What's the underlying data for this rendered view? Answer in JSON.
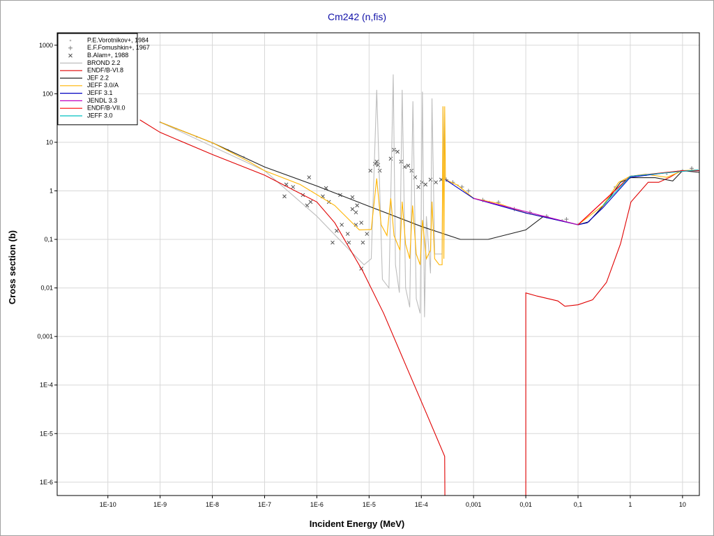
{
  "chart_data": {
    "type": "line",
    "title": "Cm242 (n,fis)",
    "x_label": "Incident Energy (MeV)",
    "y_label": "Cross section (b)",
    "log_x": true,
    "log_y": true,
    "grid": true,
    "legend": "upper left",
    "xlim": [
      1.07e-11,
      21
    ],
    "ylim": [
      5.3e-07,
      1800
    ],
    "xticks": [
      {
        "value": 1e-10,
        "label": "1E-10"
      },
      {
        "value": 1e-09,
        "label": "1E-9"
      },
      {
        "value": 1e-08,
        "label": "1E-8"
      },
      {
        "value": 1e-07,
        "label": "1E-7"
      },
      {
        "value": 1e-06,
        "label": "1E-6"
      },
      {
        "value": 1e-05,
        "label": "1E-5"
      },
      {
        "value": 0.0001,
        "label": "1E-4"
      },
      {
        "value": 0.001,
        "label": "0,001"
      },
      {
        "value": 0.01,
        "label": "0,01"
      },
      {
        "value": 0.1,
        "label": "0,1"
      },
      1,
      10
    ],
    "yticks": [
      1000,
      100,
      10,
      1,
      {
        "value": 0.1,
        "label": "0,1"
      },
      {
        "value": 0.01,
        "label": "0,01"
      },
      {
        "value": 0.001,
        "label": "0,001"
      },
      {
        "value": 0.0001,
        "label": "1E-4"
      },
      {
        "value": 1e-05,
        "label": "1E-5"
      },
      {
        "value": 1e-06,
        "label": "1E-6"
      }
    ],
    "series": [
      {
        "name": "P.E.Vorotnikov+, 1984",
        "kind": "scatter",
        "marker": "dot",
        "color": "#b8b8b8",
        "x": [
          1e-09,
          2e-09,
          5e-09,
          1e-08,
          2e-08,
          4e-08,
          0.0003,
          0.0005,
          0.001,
          0.002,
          0.005,
          0.01,
          0.02,
          0.05,
          0.1,
          0.5,
          1,
          2,
          5,
          10,
          15
        ],
        "values": [
          26,
          19,
          13,
          9.5,
          7,
          5,
          1.6,
          1.3,
          0.7,
          0.6,
          0.45,
          0.35,
          0.3,
          0.25,
          0.21,
          1.2,
          1.9,
          2.1,
          2.2,
          2.7,
          2.9
        ]
      },
      {
        "name": "E.F.Fomushkin+, 1967",
        "kind": "scatter",
        "marker": "plus",
        "color": "#808080",
        "x": [
          0.0003,
          0.0004,
          0.0006,
          0.0008,
          0.0015,
          0.003,
          0.006,
          0.012,
          0.025,
          0.06,
          15
        ],
        "values": [
          1.7,
          1.5,
          1.2,
          1.0,
          0.65,
          0.58,
          0.42,
          0.36,
          0.3,
          0.26,
          2.9
        ]
      },
      {
        "name": "B.Alam+, 1988",
        "kind": "scatter",
        "marker": "x",
        "color": "#505050",
        "x": [
          2.6e-07,
          2.4e-07,
          7.6e-07,
          1.3e-06,
          1.7e-06,
          7.1e-07,
          3.5e-07,
          5.4e-07,
          2.8e-06,
          4.8e-06,
          4.8e-06,
          5.6e-06,
          5.9e-06,
          2e-06,
          2.4e-06,
          3e-06,
          3.9e-06,
          4.1e-06,
          5.6e-06,
          7.1e-06,
          7.1e-06,
          7.6e-06,
          9.1e-06,
          1.06e-05,
          1.3e-05,
          1.4e-05,
          1.49e-05,
          1.6e-05,
          2.6e-05,
          3e-05,
          3.5e-05,
          4.1e-05,
          4.8e-05,
          5.6e-05,
          6.5e-05,
          7.6e-05,
          8.8e-05,
          0.000103,
          0.00012,
          0.00015,
          0.00019,
          0.00024,
          6.5e-07,
          1.5e-06
        ],
        "values": [
          1.35,
          0.77,
          0.59,
          0.77,
          0.59,
          1.9,
          1.2,
          0.82,
          0.82,
          0.74,
          0.42,
          0.36,
          0.5,
          0.086,
          0.15,
          0.2,
          0.13,
          0.086,
          0.2,
          0.22,
          0.025,
          0.086,
          0.13,
          2.6,
          3.6,
          4.0,
          3.4,
          2.6,
          4.6,
          7.0,
          6.4,
          4.0,
          3.1,
          3.3,
          2.6,
          1.9,
          1.2,
          1.5,
          1.35,
          1.7,
          1.5,
          1.7,
          0.5,
          1.14
        ]
      },
      {
        "name": "BROND 2.2",
        "kind": "line",
        "color": "#bdbdbd",
        "x": [
          1e-09,
          1e-07,
          1e-06,
          5e-06,
          8e-06,
          1.1e-05,
          1.4e-05,
          1.8e-05,
          2.4e-05,
          2.9e-05,
          3.2e-05,
          3.8e-05,
          4.3e-05,
          5e-05,
          6e-05,
          6.9e-05,
          8e-05,
          9.5e-05,
          0.000105,
          0.000115,
          0.000125,
          0.00015,
          0.00016,
          0.00018,
          0.00025,
          0.00026,
          0.00028,
          0.0005,
          0.001,
          0.01,
          0.1,
          1,
          10,
          20
        ],
        "values": [
          26,
          2.6,
          0.3,
          0.05,
          0.03,
          0.04,
          120,
          0.015,
          0.01,
          250,
          0.03,
          0.008,
          120,
          0.01,
          0.004,
          70,
          0.006,
          0.003,
          110,
          0.0025,
          0.3,
          0.02,
          80,
          0.05,
          0.05,
          55,
          1.7,
          1.3,
          0.7,
          0.35,
          0.2,
          2.0,
          2.6,
          2.7
        ]
      },
      {
        "name": "ENDF/B-VI.8",
        "kind": "line",
        "color": "#e00000",
        "x": [
          4.1e-10,
          1e-09,
          1e-08,
          1e-07,
          1e-06,
          2.2e-06,
          4.1e-06,
          7.6e-06,
          1.9e-05,
          4.8e-05,
          0.00012,
          0.00028,
          0.000285,
          null,
          0.01,
          0.01,
          0.0164,
          0.041,
          0.056,
          0.1,
          0.19,
          0.35,
          0.65,
          1.03,
          2.2,
          3.5,
          5.7,
          9.3,
          21
        ],
        "values": [
          29,
          16,
          5.6,
          2.1,
          0.59,
          0.22,
          0.069,
          0.022,
          0.003,
          0.00029,
          2.9e-05,
          3.4e-06,
          1e-07,
          null,
          1e-07,
          0.0079,
          0.0068,
          0.0054,
          0.0042,
          0.0045,
          0.0057,
          0.013,
          0.081,
          0.59,
          1.5,
          1.5,
          1.9,
          2.6,
          2.6
        ]
      },
      {
        "name": "JEF 2.2",
        "kind": "line",
        "color": "#202020",
        "x": [
          1e-09,
          1e-08,
          1e-07,
          1e-06,
          1e-05,
          0.0001,
          0.00056,
          0.0019,
          0.01,
          0.022,
          0.1,
          0.16,
          0.35,
          0.65,
          1.03,
          3.0,
          6.5,
          10,
          21
        ],
        "values": [
          26,
          9.8,
          3.1,
          1.26,
          0.48,
          0.185,
          0.1,
          0.1,
          0.157,
          0.3,
          0.2,
          0.23,
          0.59,
          1.5,
          1.87,
          1.87,
          1.6,
          2.6,
          2.4
        ]
      },
      {
        "name": "JEFF 3.0/A",
        "kind": "line",
        "color": "#ffb400",
        "x": [
          1e-09,
          1e-08,
          5e-08,
          1e-07,
          4.8e-07,
          2.2e-06,
          6.5e-06,
          1.1e-05,
          1.4e-05,
          1.7e-05,
          2.2e-05,
          2.6e-05,
          3e-05,
          3.9e-05,
          4.3e-05,
          5e-05,
          6e-05,
          6.8e-05,
          8e-05,
          9.5e-05,
          0.000105,
          0.000125,
          0.00015,
          0.00016,
          0.00018,
          0.00022,
          0.00025,
          0.00026,
          0.00027,
          0.00028,
          0.00029,
          0.0005,
          0.001,
          0.003,
          0.01,
          0.03,
          0.1,
          0.3,
          0.6,
          1,
          2,
          5,
          10,
          20
        ],
        "values": [
          26,
          9.8,
          4.0,
          2.6,
          1.35,
          0.5,
          0.157,
          0.16,
          1.8,
          0.2,
          0.12,
          0.7,
          0.12,
          0.06,
          0.6,
          0.08,
          0.04,
          0.5,
          0.05,
          0.03,
          0.25,
          0.04,
          0.06,
          0.6,
          0.04,
          0.03,
          0.03,
          55,
          0.04,
          55,
          1.7,
          1.3,
          0.7,
          0.55,
          0.35,
          0.27,
          0.2,
          0.5,
          1.5,
          2.0,
          2.2,
          1.9,
          2.6,
          2.7
        ]
      },
      {
        "name": "JEFF 3.1",
        "kind": "line",
        "color": "#0000c0",
        "x": [
          0.00029,
          0.001,
          0.01,
          0.1,
          0.15,
          0.3,
          1,
          10,
          20
        ],
        "values": [
          1.7,
          0.7,
          0.35,
          0.2,
          0.22,
          0.45,
          1.9,
          2.6,
          2.6
        ]
      },
      {
        "name": "JENDL 3.3",
        "kind": "line",
        "color": "#c000c0",
        "x": [
          0.001,
          0.1,
          1,
          20
        ],
        "values": [
          0.7,
          0.2,
          2.0,
          2.7
        ]
      },
      {
        "name": "ENDF/B-VII.0",
        "kind": "line",
        "color": "#ff0000",
        "x": [
          0.1,
          1,
          10,
          20
        ],
        "values": [
          0.2,
          2.0,
          2.6,
          2.6
        ]
      },
      {
        "name": "JEFF 3.0",
        "kind": "line",
        "color": "#00c0c0",
        "x": [
          0.3,
          1,
          20
        ],
        "values": [
          0.5,
          2.0,
          2.7
        ]
      }
    ]
  }
}
